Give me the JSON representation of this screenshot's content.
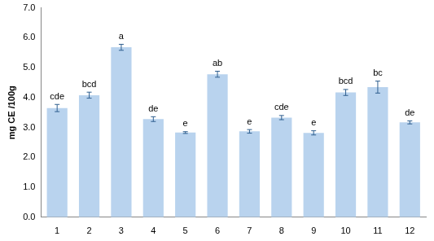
{
  "chart_data": {
    "type": "bar",
    "y_label": "mg CE /100g",
    "categories": [
      "1",
      "2",
      "3",
      "4",
      "5",
      "6",
      "7",
      "8",
      "9",
      "10",
      "11",
      "12"
    ],
    "values": [
      3.65,
      4.08,
      5.68,
      3.28,
      2.83,
      4.78,
      2.87,
      3.33,
      2.82,
      4.17,
      4.35,
      3.17
    ],
    "errors": [
      0.12,
      0.1,
      0.1,
      0.08,
      0.03,
      0.1,
      0.06,
      0.07,
      0.07,
      0.1,
      0.2,
      0.05
    ],
    "annotations": [
      "cde",
      "bcd",
      "a",
      "de",
      "e",
      "ab",
      "e",
      "cde",
      "e",
      "bcd",
      "bc",
      "de"
    ],
    "color": "#b9d3ee",
    "ylim": [
      0,
      7
    ],
    "yticks": [
      {
        "value": 0,
        "label": "0.0"
      },
      {
        "value": 1,
        "label": "1.0"
      },
      {
        "value": 2,
        "label": "2.0"
      },
      {
        "value": 3,
        "label": "3.0"
      },
      {
        "value": 4,
        "label": "4.0"
      },
      {
        "value": 5,
        "label": "5.0"
      },
      {
        "value": 6,
        "label": "6.0"
      },
      {
        "value": 7,
        "label": "7.0"
      }
    ],
    "grid": false
  }
}
